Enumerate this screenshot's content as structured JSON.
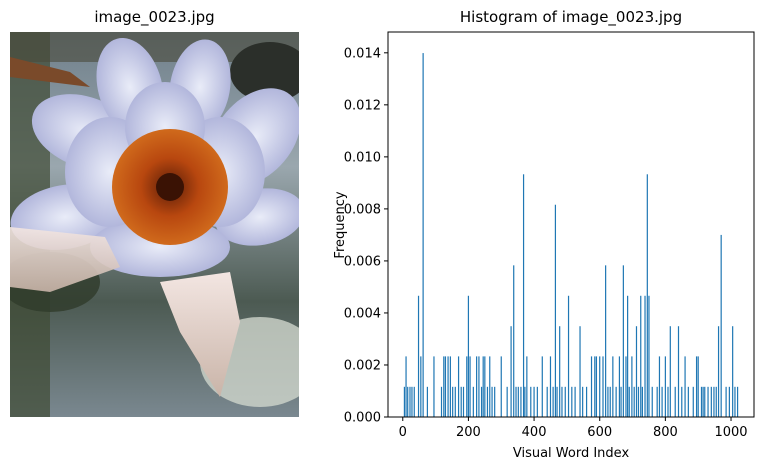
{
  "left_panel": {
    "title": "image_0023.jpg"
  },
  "chart_data": {
    "type": "bar",
    "title": "Histogram of image_0023.jpg",
    "xlabel": "Visual Word Index",
    "ylabel": "Frequency",
    "xlim": [
      -45,
      1070
    ],
    "ylim": [
      0,
      0.0148
    ],
    "xticks": [
      0,
      200,
      400,
      600,
      800,
      1000
    ],
    "yticks": [
      "0.000",
      "0.002",
      "0.004",
      "0.006",
      "0.008",
      "0.010",
      "0.012",
      "0.014"
    ],
    "bar_color": "#1f77b4",
    "x": [
      5,
      10,
      15,
      22,
      28,
      35,
      48,
      55,
      62,
      75,
      95,
      118,
      125,
      130,
      138,
      145,
      152,
      160,
      170,
      178,
      185,
      195,
      200,
      205,
      215,
      225,
      232,
      240,
      245,
      250,
      258,
      265,
      272,
      280,
      300,
      318,
      330,
      338,
      345,
      352,
      360,
      368,
      372,
      378,
      390,
      400,
      410,
      425,
      440,
      450,
      458,
      465,
      470,
      478,
      485,
      495,
      505,
      515,
      525,
      540,
      548,
      560,
      575,
      585,
      590,
      600,
      610,
      618,
      625,
      632,
      640,
      650,
      660,
      665,
      672,
      680,
      685,
      690,
      698,
      705,
      712,
      718,
      725,
      730,
      738,
      745,
      750,
      760,
      775,
      782,
      790,
      800,
      808,
      815,
      830,
      840,
      850,
      860,
      870,
      885,
      895,
      900,
      910,
      915,
      920,
      930,
      940,
      948,
      955,
      962,
      970,
      985,
      995,
      1005,
      1012,
      1020
    ],
    "values": [
      0.00116,
      0.00233,
      0.00116,
      0.00116,
      0.00116,
      0.00116,
      0.00466,
      0.00233,
      0.01399,
      0.00116,
      0.00233,
      0.00116,
      0.00233,
      0.00233,
      0.00233,
      0.00233,
      0.00116,
      0.00116,
      0.00233,
      0.00116,
      0.00116,
      0.00233,
      0.00466,
      0.00233,
      0.00116,
      0.00233,
      0.00233,
      0.00116,
      0.00233,
      0.00233,
      0.00116,
      0.00233,
      0.00116,
      0.00116,
      0.00233,
      0.00116,
      0.00349,
      0.00583,
      0.00116,
      0.00116,
      0.00116,
      0.00933,
      0.00116,
      0.00233,
      0.00116,
      0.00116,
      0.00116,
      0.00233,
      0.00116,
      0.00233,
      0.00116,
      0.00816,
      0.00116,
      0.00349,
      0.00116,
      0.00116,
      0.00466,
      0.00116,
      0.00116,
      0.00349,
      0.00116,
      0.00116,
      0.00233,
      0.00233,
      0.00233,
      0.00233,
      0.00233,
      0.00583,
      0.00116,
      0.00116,
      0.00233,
      0.00116,
      0.00233,
      0.00116,
      0.00583,
      0.00233,
      0.00466,
      0.00116,
      0.00233,
      0.00116,
      0.00349,
      0.00116,
      0.00466,
      0.00116,
      0.00466,
      0.00933,
      0.00466,
      0.00116,
      0.00116,
      0.00233,
      0.00116,
      0.00233,
      0.00116,
      0.00349,
      0.00116,
      0.00349,
      0.00116,
      0.00233,
      0.00116,
      0.00116,
      0.00233,
      0.00233,
      0.00116,
      0.00116,
      0.00116,
      0.00116,
      0.00116,
      0.00116,
      0.00116,
      0.00349,
      0.007,
      0.00116,
      0.00116,
      0.00349,
      0.00116,
      0.00116
    ]
  }
}
